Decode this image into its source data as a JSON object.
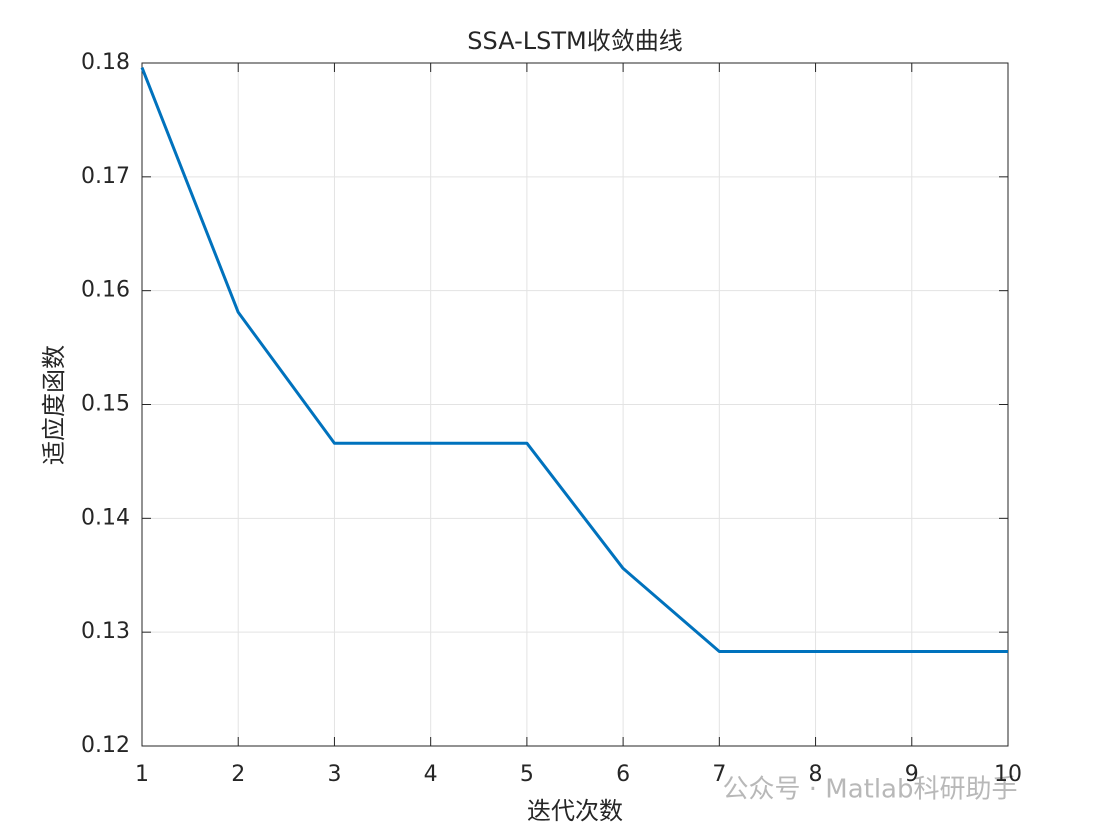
{
  "chart_data": {
    "type": "line",
    "title": "SSA-LSTM收敛曲线",
    "xlabel": "迭代次数",
    "ylabel": "适应度函数",
    "x": [
      1,
      2,
      3,
      4,
      5,
      6,
      7,
      8,
      9,
      10
    ],
    "values": [
      0.1796,
      0.1581,
      0.1466,
      0.1466,
      0.1466,
      0.1356,
      0.1283,
      0.1283,
      0.1283,
      0.1283
    ],
    "color": "#0072bd",
    "xlim": [
      1,
      10
    ],
    "xticks": [
      1,
      2,
      3,
      4,
      5,
      6,
      7,
      8,
      9,
      10
    ],
    "ylim": [
      0.12,
      0.18
    ],
    "yticks": [
      0.12,
      0.13,
      0.14,
      0.15,
      0.16,
      0.17,
      0.18
    ],
    "grid": true,
    "watermark": "公众号 · Matlab科研助手"
  }
}
